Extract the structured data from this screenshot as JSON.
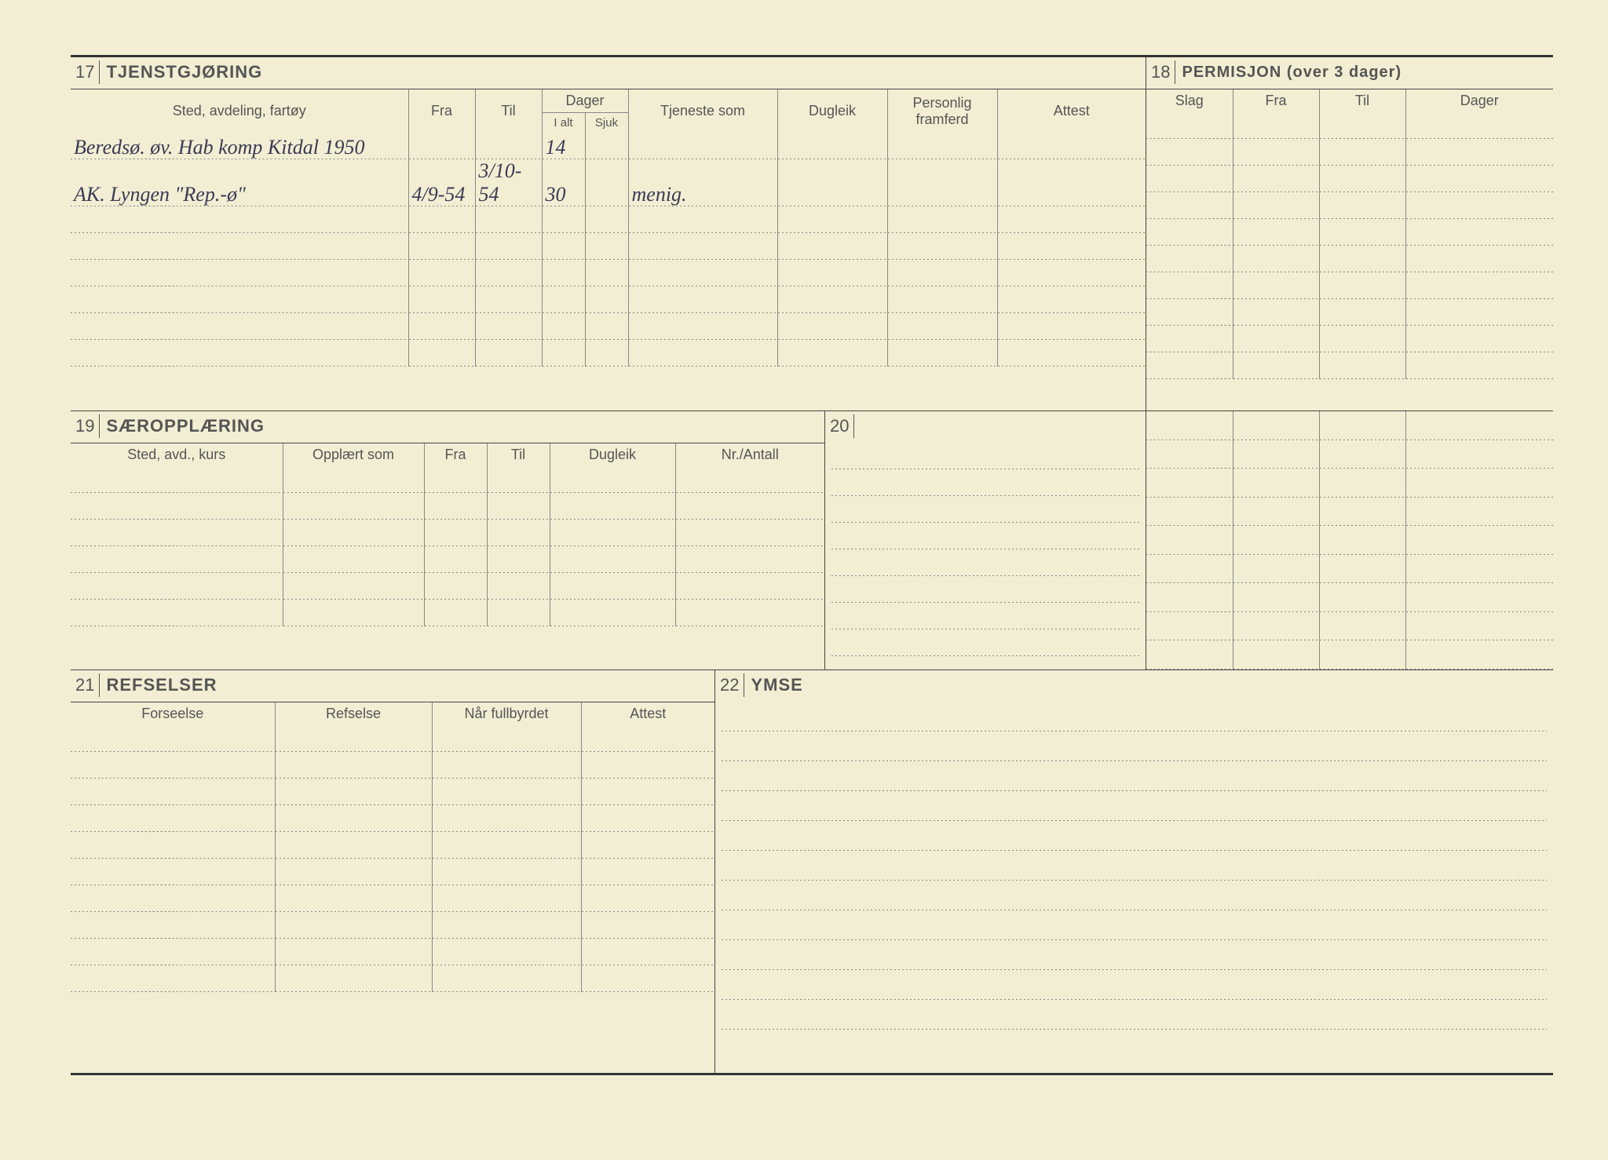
{
  "section17": {
    "num": "17",
    "title": "TJENSTGJØRING",
    "headers": {
      "sted": "Sted, avdeling, fartøy",
      "fra": "Fra",
      "til": "Til",
      "dager": "Dager",
      "ialt": "I alt",
      "sjuk": "Sjuk",
      "tjeneste": "Tjeneste som",
      "dugleik": "Dugleik",
      "framferd": "Personlig framferd",
      "attest": "Attest"
    },
    "rows": [
      {
        "sted": "Beredsø. øv. Hab komp Kitdal   1950",
        "fra": "",
        "til": "",
        "ialt": "14",
        "sjuk": "",
        "tjeneste": "",
        "dugleik": "",
        "framferd": "",
        "attest": ""
      },
      {
        "sted": "AK. Lyngen   \"Rep.-ø\"",
        "fra": "4/9-54",
        "til": "3/10-54",
        "ialt": "30",
        "sjuk": "",
        "tjeneste": "menig.",
        "dugleik": "",
        "framferd": "",
        "attest": ""
      },
      {
        "sted": "",
        "fra": "",
        "til": "",
        "ialt": "",
        "sjuk": "",
        "tjeneste": "",
        "dugleik": "",
        "framferd": "",
        "attest": ""
      },
      {
        "sted": "",
        "fra": "",
        "til": "",
        "ialt": "",
        "sjuk": "",
        "tjeneste": "",
        "dugleik": "",
        "framferd": "",
        "attest": ""
      },
      {
        "sted": "",
        "fra": "",
        "til": "",
        "ialt": "",
        "sjuk": "",
        "tjeneste": "",
        "dugleik": "",
        "framferd": "",
        "attest": ""
      },
      {
        "sted": "",
        "fra": "",
        "til": "",
        "ialt": "",
        "sjuk": "",
        "tjeneste": "",
        "dugleik": "",
        "framferd": "",
        "attest": ""
      },
      {
        "sted": "",
        "fra": "",
        "til": "",
        "ialt": "",
        "sjuk": "",
        "tjeneste": "",
        "dugleik": "",
        "framferd": "",
        "attest": ""
      },
      {
        "sted": "",
        "fra": "",
        "til": "",
        "ialt": "",
        "sjuk": "",
        "tjeneste": "",
        "dugleik": "",
        "framferd": "",
        "attest": ""
      }
    ]
  },
  "section18": {
    "num": "18",
    "title": "PERMISJON (over 3 dager)",
    "headers": {
      "slag": "Slag",
      "fra": "Fra",
      "til": "Til",
      "dager": "Dager"
    },
    "rowCount": 18
  },
  "section19": {
    "num": "19",
    "title": "SÆROPPLÆRING",
    "headers": {
      "sted": "Sted, avd., kurs",
      "opplart": "Opplært som",
      "fra": "Fra",
      "til": "Til",
      "dugleik": "Dugleik",
      "nr": "Nr./Antall"
    },
    "rowCount": 6
  },
  "section20": {
    "num": "20"
  },
  "section21": {
    "num": "21",
    "title": "REFSELSER",
    "headers": {
      "forseelse": "Forseelse",
      "refselse": "Refselse",
      "nar": "Når fullbyrdet",
      "attest": "Attest"
    },
    "rowCount": 10
  },
  "section22": {
    "num": "22",
    "title": "YMSE",
    "rowCount": 11
  },
  "colors": {
    "paper": "#f2eed3",
    "ink": "#333",
    "label": "#555",
    "handwriting": "#3a3a55"
  }
}
